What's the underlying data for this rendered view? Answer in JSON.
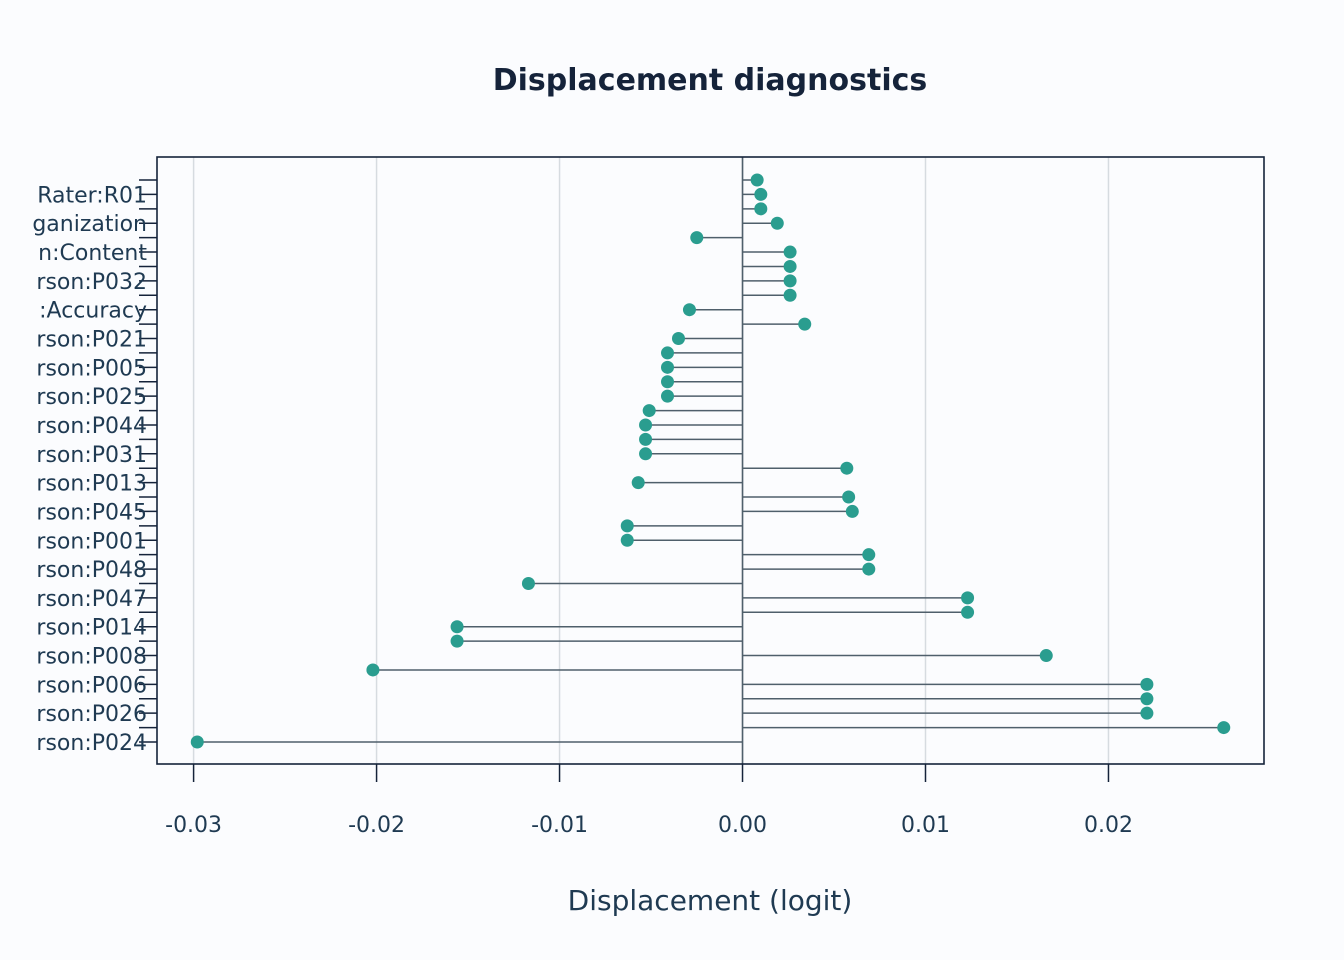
{
  "chart_data": {
    "type": "lollipop",
    "title": "Displacement diagnostics",
    "xlabel": "Displacement (logit)",
    "ylabel": "",
    "xlim": [
      -0.032,
      0.0285
    ],
    "xticks": [
      -0.03,
      -0.02,
      -0.01,
      0.0,
      0.01,
      0.02
    ],
    "xtick_labels": [
      "-0.03",
      "-0.02",
      "-0.01",
      "0.00",
      "0.01",
      "0.02"
    ],
    "grid": "vertical",
    "baseline": 0,
    "color_point": "#2a9d8f",
    "color_stem": "#4f5f6b",
    "labeled_every": 2,
    "items": [
      {
        "label": "",
        "value": 0.0008
      },
      {
        "label": "Rater:R01",
        "value": 0.001
      },
      {
        "label": "",
        "value": 0.001
      },
      {
        "label": "ganization",
        "value": 0.0019
      },
      {
        "label": "",
        "value": -0.0025
      },
      {
        "label": "n:Content",
        "value": 0.0026
      },
      {
        "label": "",
        "value": 0.0026
      },
      {
        "label": "rson:P032",
        "value": 0.0026
      },
      {
        "label": "",
        "value": 0.0026
      },
      {
        "label": ":Accuracy",
        "value": -0.0029
      },
      {
        "label": "",
        "value": 0.0034
      },
      {
        "label": "rson:P021",
        "value": -0.0035
      },
      {
        "label": "",
        "value": -0.0041
      },
      {
        "label": "rson:P005",
        "value": -0.0041
      },
      {
        "label": "",
        "value": -0.0041
      },
      {
        "label": "rson:P025",
        "value": -0.0041
      },
      {
        "label": "",
        "value": -0.0051
      },
      {
        "label": "rson:P044",
        "value": -0.0053
      },
      {
        "label": "",
        "value": -0.0053
      },
      {
        "label": "rson:P031",
        "value": -0.0053
      },
      {
        "label": "",
        "value": 0.0057
      },
      {
        "label": "rson:P013",
        "value": -0.0057
      },
      {
        "label": "",
        "value": 0.0058
      },
      {
        "label": "rson:P045",
        "value": 0.006
      },
      {
        "label": "",
        "value": -0.0063
      },
      {
        "label": "rson:P001",
        "value": -0.0063
      },
      {
        "label": "",
        "value": 0.0069
      },
      {
        "label": "rson:P048",
        "value": 0.0069
      },
      {
        "label": "",
        "value": -0.0117
      },
      {
        "label": "rson:P047",
        "value": 0.0123
      },
      {
        "label": "",
        "value": 0.0123
      },
      {
        "label": "rson:P014",
        "value": -0.0156
      },
      {
        "label": "",
        "value": -0.0156
      },
      {
        "label": "rson:P008",
        "value": 0.0166
      },
      {
        "label": "",
        "value": -0.0202
      },
      {
        "label": "rson:P006",
        "value": 0.0221
      },
      {
        "label": "",
        "value": 0.0221
      },
      {
        "label": "rson:P026",
        "value": 0.0221
      },
      {
        "label": "",
        "value": 0.0263
      },
      {
        "label": "rson:P024",
        "value": -0.0298
      }
    ]
  }
}
